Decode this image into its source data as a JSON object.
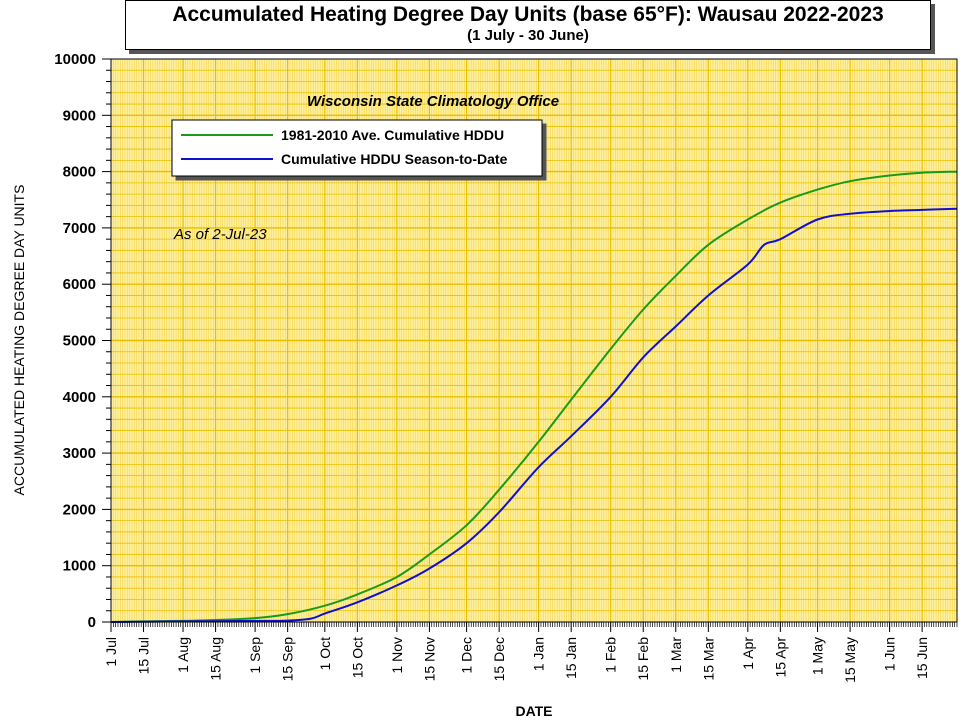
{
  "chart_data": {
    "type": "line",
    "title": "Accumulated Heating Degree Day Units (base 65°F): Wausau 2022-2023",
    "subtitle": "(1 July - 30 June)",
    "xlabel": "DATE",
    "ylabel": "ACCUMULATED HEATING DEGREE DAY UNITS",
    "ylim": [
      0,
      10000
    ],
    "yticks": [
      0,
      1000,
      2000,
      3000,
      4000,
      5000,
      6000,
      7000,
      8000,
      9000,
      10000
    ],
    "xlim": [
      "2022-07-01",
      "2023-06-30"
    ],
    "xtick_labels": [
      "1 Jul",
      "15 Jul",
      "1 Aug",
      "15 Aug",
      "1 Sep",
      "15 Sep",
      "1 Oct",
      "15 Oct",
      "1 Nov",
      "15 Nov",
      "1 Dec",
      "15 Dec",
      "1 Jan",
      "15 Jan",
      "1 Feb",
      "15 Feb",
      "1 Mar",
      "15 Mar",
      "1 Apr",
      "15 Apr",
      "1 May",
      "15 May",
      "1 Jun",
      "15 Jun"
    ],
    "xtick_dates": [
      "2022-07-01",
      "2022-07-15",
      "2022-08-01",
      "2022-08-15",
      "2022-09-01",
      "2022-09-15",
      "2022-10-01",
      "2022-10-15",
      "2022-11-01",
      "2022-11-15",
      "2022-12-01",
      "2022-12-15",
      "2023-01-01",
      "2023-01-15",
      "2023-02-01",
      "2023-02-15",
      "2023-03-01",
      "2023-03-15",
      "2023-04-01",
      "2023-04-15",
      "2023-05-01",
      "2023-05-15",
      "2023-06-01",
      "2023-06-15"
    ],
    "grid": true,
    "background_color": "#FFF0A0",
    "grid_color": "#E8C000",
    "legend_position": "top-left",
    "annotations": [
      "Wisconsin State Climatology Office",
      "As of 2-Jul-23"
    ],
    "series": [
      {
        "name": "1981-2010 Ave. Cumulative HDDU",
        "color": "#1A9A1A",
        "x": [
          "2022-07-01",
          "2022-07-15",
          "2022-08-01",
          "2022-08-15",
          "2022-09-01",
          "2022-09-15",
          "2022-10-01",
          "2022-10-15",
          "2022-11-01",
          "2022-11-15",
          "2022-12-01",
          "2022-12-15",
          "2023-01-01",
          "2023-01-15",
          "2023-02-01",
          "2023-02-15",
          "2023-03-01",
          "2023-03-15",
          "2023-04-01",
          "2023-04-15",
          "2023-05-01",
          "2023-05-15",
          "2023-06-01",
          "2023-06-15",
          "2023-06-30"
        ],
        "values": [
          0,
          10,
          20,
          35,
          70,
          140,
          290,
          490,
          800,
          1200,
          1720,
          2350,
          3200,
          3950,
          4850,
          5550,
          6150,
          6700,
          7150,
          7450,
          7680,
          7830,
          7930,
          7980,
          8000
        ]
      },
      {
        "name": "Cumulative HDDU Season-to-Date",
        "color": "#1010D0",
        "x": [
          "2022-07-01",
          "2022-07-15",
          "2022-08-01",
          "2022-08-15",
          "2022-09-01",
          "2022-09-15",
          "2022-09-25",
          "2022-10-01",
          "2022-10-15",
          "2022-11-01",
          "2022-11-15",
          "2022-12-01",
          "2022-12-15",
          "2023-01-01",
          "2023-01-15",
          "2023-02-01",
          "2023-02-15",
          "2023-03-01",
          "2023-03-15",
          "2023-04-01",
          "2023-04-08",
          "2023-04-15",
          "2023-05-01",
          "2023-05-15",
          "2023-06-01",
          "2023-06-15",
          "2023-06-30"
        ],
        "values": [
          0,
          5,
          10,
          15,
          20,
          25,
          60,
          150,
          350,
          650,
          950,
          1400,
          1950,
          2750,
          3300,
          4000,
          4700,
          5250,
          5800,
          6350,
          6700,
          6800,
          7150,
          7250,
          7300,
          7320,
          7340
        ]
      }
    ]
  }
}
